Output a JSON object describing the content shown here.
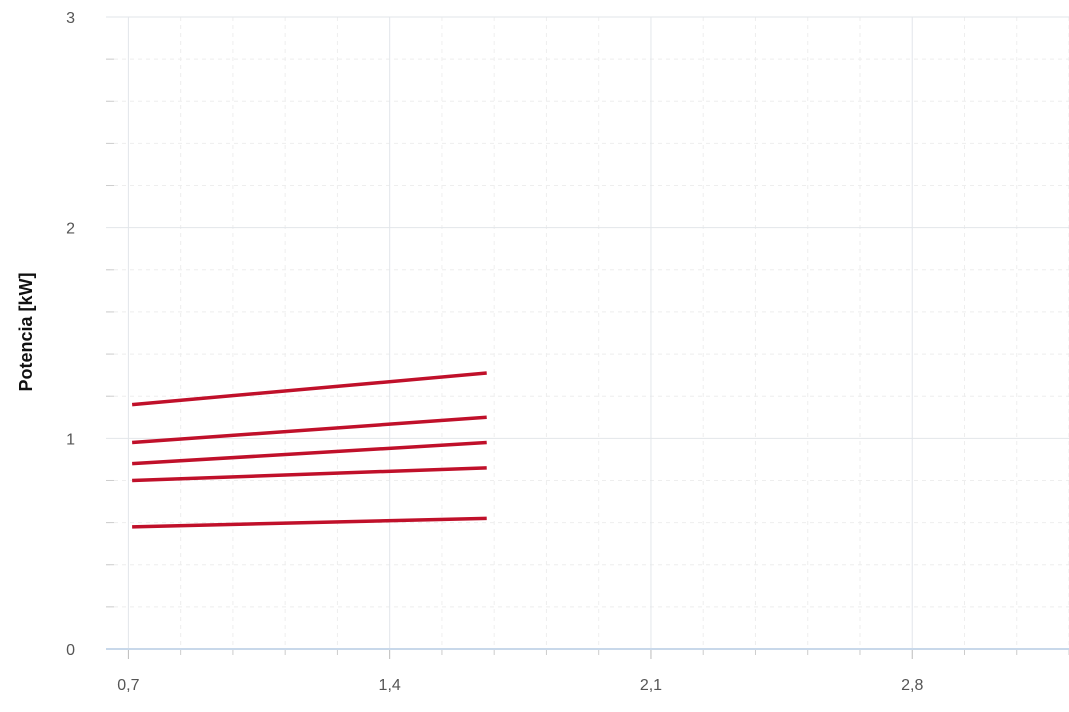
{
  "chart_data": {
    "type": "line",
    "title": "",
    "xlabel": "",
    "ylabel": "Potencia [kW]",
    "xlim": [
      0.64,
      3.22
    ],
    "ylim": [
      0,
      3
    ],
    "x_ticks": [
      "0,7",
      "1,4",
      "2,1",
      "2,8"
    ],
    "x_tick_values": [
      0.7,
      1.4,
      2.1,
      2.8
    ],
    "y_ticks": [
      "0",
      "1",
      "2",
      "3"
    ],
    "y_tick_values": [
      0,
      1,
      2,
      3
    ],
    "grid": true,
    "line_color": "#c0102a",
    "series": [
      {
        "x": [
          0.71,
          1.66
        ],
        "values": [
          1.16,
          1.31
        ]
      },
      {
        "x": [
          0.71,
          1.66
        ],
        "values": [
          0.98,
          1.1
        ]
      },
      {
        "x": [
          0.71,
          1.66
        ],
        "values": [
          0.88,
          0.98
        ]
      },
      {
        "x": [
          0.71,
          1.66
        ],
        "values": [
          0.8,
          0.86
        ]
      },
      {
        "x": [
          0.71,
          1.66
        ],
        "values": [
          0.58,
          0.62
        ]
      }
    ]
  }
}
